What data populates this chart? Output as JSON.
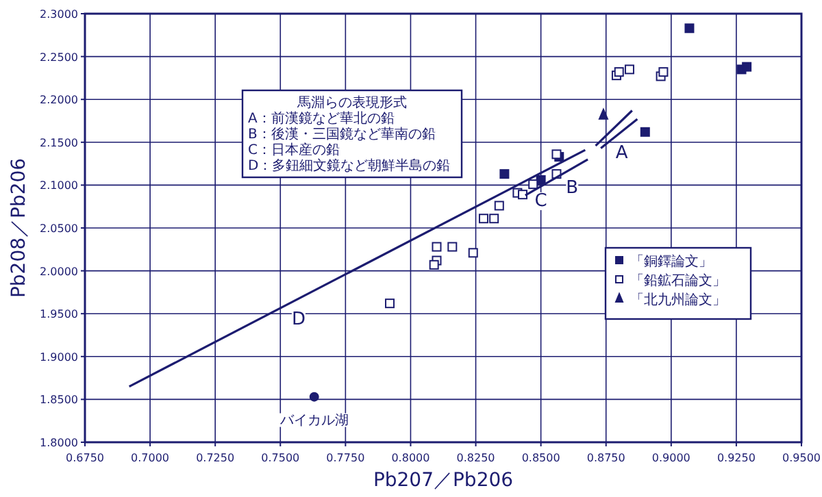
{
  "chart_data": {
    "type": "scatter",
    "xlabel": "Pb207／Pb206",
    "ylabel": "Pb208／Pb206",
    "xlim": [
      0.675,
      0.95
    ],
    "ylim": [
      1.8,
      2.3
    ],
    "xticks": [
      {
        "value": 0.675,
        "label": "0.6750"
      },
      {
        "value": 0.7,
        "label": "0.7000"
      },
      {
        "value": 0.725,
        "label": "0.7250"
      },
      {
        "value": 0.75,
        "label": "0.7500"
      },
      {
        "value": 0.775,
        "label": "0.7750"
      },
      {
        "value": 0.8,
        "label": "0.8000"
      },
      {
        "value": 0.825,
        "label": "0.8250"
      },
      {
        "value": 0.85,
        "label": "0.8500"
      },
      {
        "value": 0.875,
        "label": "0.8750"
      },
      {
        "value": 0.9,
        "label": "0.9000"
      },
      {
        "value": 0.925,
        "label": "0.9250"
      },
      {
        "value": 0.95,
        "label": "0.9500"
      }
    ],
    "yticks": [
      {
        "value": 1.8,
        "label": "1.8000"
      },
      {
        "value": 1.85,
        "label": "1.8500"
      },
      {
        "value": 1.9,
        "label": "1.9000"
      },
      {
        "value": 1.95,
        "label": "1.9500"
      },
      {
        "value": 2.0,
        "label": "2.0000"
      },
      {
        "value": 2.05,
        "label": "2.0500"
      },
      {
        "value": 2.1,
        "label": "2.1000"
      },
      {
        "value": 2.15,
        "label": "2.1500"
      },
      {
        "value": 2.2,
        "label": "2.2000"
      },
      {
        "value": 2.25,
        "label": "2.2500"
      },
      {
        "value": 2.3,
        "label": "2.3000"
      }
    ],
    "grid": true,
    "legend": "right",
    "series": [
      {
        "name": "「銅鐸論文」",
        "marker": "square",
        "color": "#1c1c70",
        "x": [
          0.907,
          0.927,
          0.929,
          0.89,
          0.836,
          0.85,
          0.857
        ],
        "values": [
          2.283,
          2.235,
          2.238,
          2.162,
          2.113,
          2.106,
          2.133
        ]
      },
      {
        "name": "「鉛鉱石論文」",
        "marker": "square",
        "color": "#ffffff",
        "x": [
          0.879,
          0.88,
          0.884,
          0.896,
          0.897,
          0.856,
          0.856,
          0.841,
          0.843,
          0.847,
          0.834,
          0.828,
          0.832,
          0.81,
          0.816,
          0.81,
          0.809,
          0.824,
          0.792
        ],
        "values": [
          2.228,
          2.232,
          2.235,
          2.227,
          2.232,
          2.136,
          2.113,
          2.091,
          2.089,
          2.101,
          2.076,
          2.061,
          2.061,
          2.028,
          2.028,
          2.012,
          2.007,
          2.021,
          1.962
        ]
      },
      {
        "name": "「北九州論文」",
        "marker": "triangle",
        "color": "#1c1c70",
        "x": [
          0.874
        ],
        "values": [
          2.182
        ]
      },
      {
        "marker": "circle",
        "color": "#1c1c70",
        "x": [
          0.763
        ],
        "values": [
          1.853
        ]
      },
      {
        "type": "line",
        "color": "#1c1c70",
        "x": [
          0.692,
          0.867
        ],
        "values": [
          1.865,
          2.141
        ]
      },
      {
        "type": "line",
        "color": "#1c1c70",
        "x": [
          0.844,
          0.868
        ],
        "values": [
          2.088,
          2.13
        ]
      },
      {
        "type": "line",
        "color": "#1c1c70",
        "x": [
          0.871,
          0.885
        ],
        "values": [
          2.146,
          2.187
        ]
      },
      {
        "type": "line",
        "color": "#1c1c70",
        "x": [
          0.873,
          0.887
        ],
        "values": [
          2.143,
          2.177
        ]
      }
    ],
    "annotations": [
      "馬淵らの表現形式",
      "A：前漢鏡など華北の鉛",
      "B：後漢・三国鏡など華南の鉛",
      "C：日本産の鉛",
      "D：多鈕細文鏡など朝鮮半島の鉛",
      {
        "text": "A",
        "x": 0.881,
        "y": 2.162
      },
      {
        "text": "B",
        "x": 0.862,
        "y": 2.121
      },
      {
        "text": "C",
        "x": 0.85,
        "y": 2.106
      },
      {
        "text": "D",
        "x": 0.757,
        "y": 1.968
      },
      {
        "text": "バイカル湖",
        "x": 0.763,
        "y": 1.853
      }
    ]
  }
}
